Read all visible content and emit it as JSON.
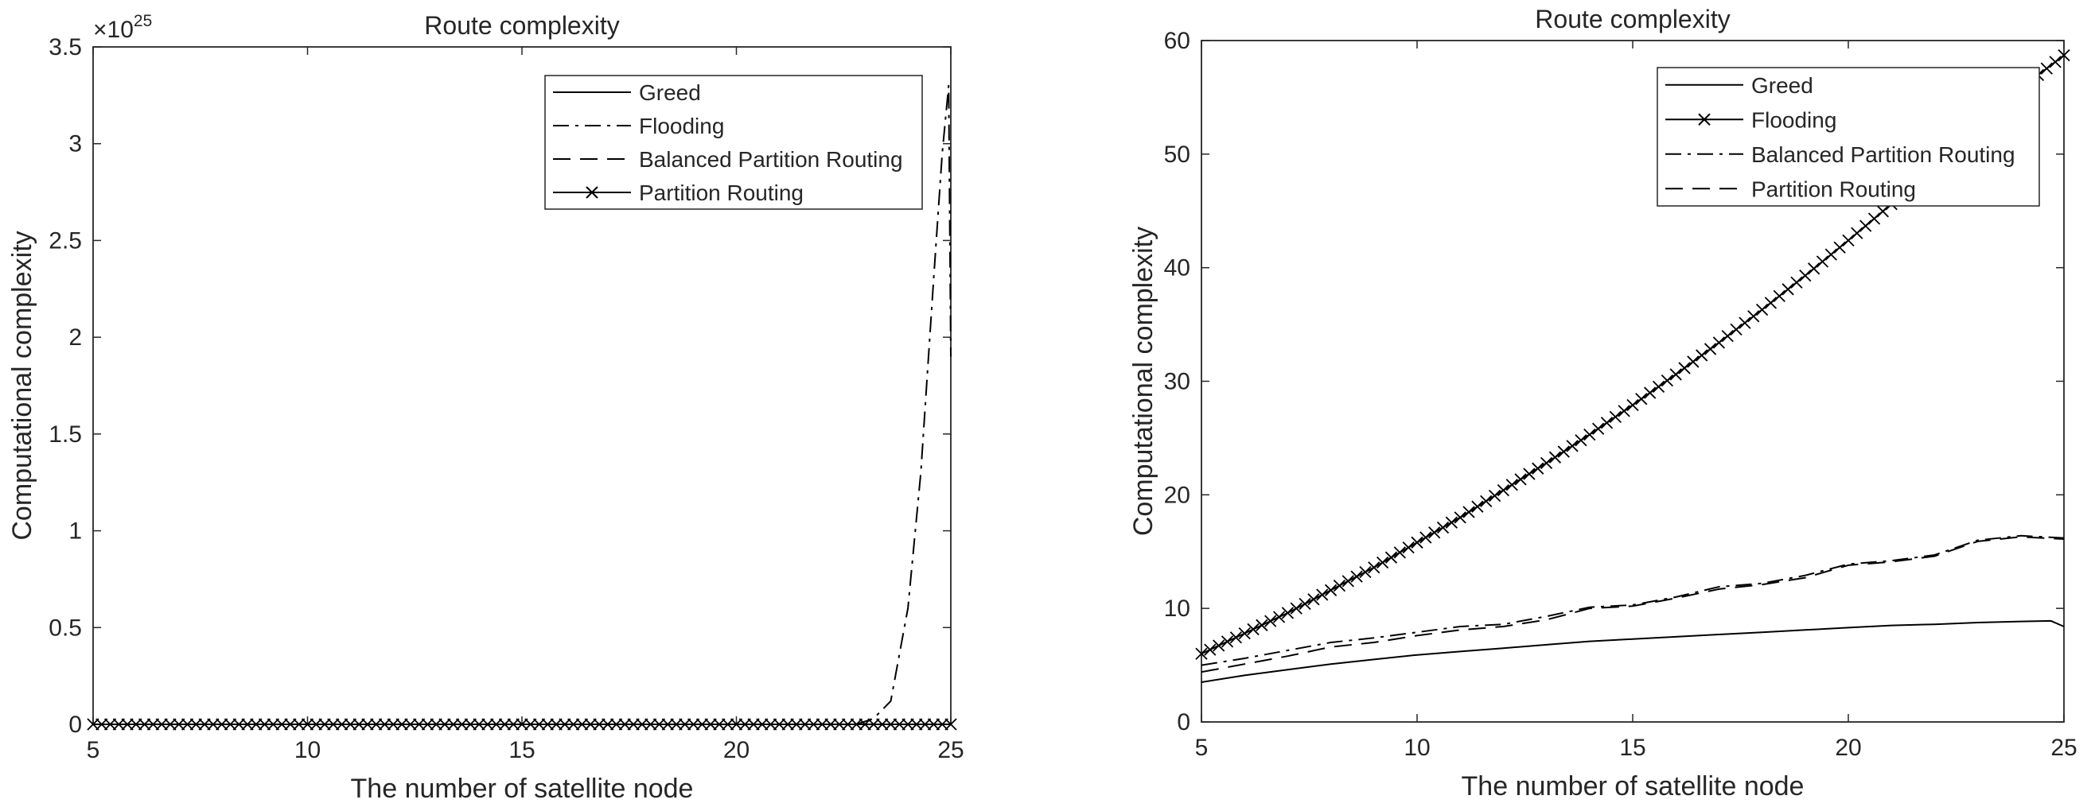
{
  "chart_data": [
    {
      "type": "line",
      "title": "Route complexity",
      "xlabel": "The number of satellite node",
      "ylabel": "Computational complexity",
      "xlim": [
        5,
        25
      ],
      "ylim": [
        0,
        3.5
      ],
      "y_exponent_label": "×10",
      "y_exponent_power": "25",
      "xticks": [
        "5",
        "10",
        "15",
        "20",
        "25"
      ],
      "yticks": [
        "0",
        "0.5",
        "1",
        "1.5",
        "2",
        "2.5",
        "3",
        "3.5"
      ],
      "legend_position": "top-right",
      "grid": false,
      "series": [
        {
          "name": "Greed",
          "style": "solid",
          "color": "#000000",
          "x": [
            5,
            10,
            15,
            20,
            25
          ],
          "y": [
            0,
            0,
            0,
            0,
            0
          ]
        },
        {
          "name": "Flooding",
          "style": "dashdot",
          "color": "#000000",
          "x": [
            5,
            15,
            20,
            22.8,
            23.2,
            23.6,
            24.0,
            24.3,
            24.6,
            24.8,
            24.95,
            25.0
          ],
          "y": [
            0,
            0,
            0,
            0,
            0.03,
            0.12,
            0.6,
            1.3,
            2.3,
            2.95,
            3.3,
            1.9
          ]
        },
        {
          "name": "Balanced Partition Routing",
          "style": "dashed",
          "color": "#000000",
          "x": [
            5,
            10,
            15,
            20,
            25
          ],
          "y": [
            0,
            0,
            0,
            0,
            0
          ]
        },
        {
          "name": "Partition Routing",
          "style": "solid",
          "marker": "x",
          "color": "#000000",
          "x": [
            5,
            25
          ],
          "y": [
            0,
            0
          ],
          "marker_count": 101
        }
      ]
    },
    {
      "type": "line",
      "title": "Route complexity",
      "xlabel": "The number of satellite node",
      "ylabel": "Computational complexity",
      "xlim": [
        5,
        25
      ],
      "ylim": [
        0,
        60
      ],
      "xticks": [
        "5",
        "10",
        "15",
        "20",
        "25"
      ],
      "yticks": [
        "0",
        "10",
        "20",
        "30",
        "40",
        "50",
        "60"
      ],
      "legend_position": "top-right",
      "grid": false,
      "series": [
        {
          "name": "Greed",
          "style": "solid",
          "color": "#000000",
          "x": [
            5,
            6,
            7,
            8,
            9,
            10,
            11,
            12,
            13,
            14,
            15,
            16,
            17,
            18,
            19,
            20,
            21,
            22,
            23,
            24,
            24.7,
            25
          ],
          "y": [
            3.5,
            4.1,
            4.6,
            5.1,
            5.5,
            5.9,
            6.2,
            6.5,
            6.8,
            7.1,
            7.3,
            7.5,
            7.7,
            7.9,
            8.1,
            8.3,
            8.5,
            8.6,
            8.75,
            8.85,
            8.9,
            8.4
          ]
        },
        {
          "name": "Flooding",
          "style": "solid",
          "marker": "x",
          "color": "#000000",
          "x": [
            5,
            6,
            7,
            8,
            9,
            10,
            11,
            12,
            13,
            14,
            15,
            16,
            17,
            18,
            19,
            20,
            21,
            22,
            23,
            24,
            25
          ],
          "y": [
            6.0,
            7.8,
            9.6,
            11.6,
            13.6,
            15.8,
            18.0,
            20.4,
            22.8,
            25.3,
            27.9,
            30.6,
            33.4,
            36.3,
            39.3,
            42.4,
            45.6,
            48.9,
            52.3,
            55.8,
            58.7
          ],
          "marker_count": 101
        },
        {
          "name": "Balanced Partition Routing",
          "style": "dashdot",
          "color": "#000000",
          "x": [
            5,
            6,
            7,
            8,
            9,
            10,
            11,
            12,
            13,
            14,
            15,
            16,
            17,
            18,
            19,
            20,
            21,
            22,
            23,
            24,
            25
          ],
          "y": [
            5.0,
            5.6,
            6.3,
            7.0,
            7.4,
            7.9,
            8.4,
            8.6,
            9.3,
            10.1,
            10.3,
            11.0,
            11.9,
            12.2,
            12.9,
            13.9,
            14.2,
            14.7,
            16.0,
            16.4,
            16.2
          ]
        },
        {
          "name": "Partition Routing",
          "style": "dashed",
          "color": "#000000",
          "x": [
            5,
            6,
            7,
            8,
            9,
            10,
            11,
            12,
            13,
            14,
            15,
            16,
            17,
            18,
            19,
            20,
            21,
            22,
            23,
            24,
            25
          ],
          "y": [
            4.4,
            5.1,
            5.8,
            6.6,
            7.0,
            7.6,
            8.1,
            8.4,
            9.0,
            10.0,
            10.2,
            10.9,
            11.7,
            12.1,
            12.7,
            13.8,
            14.1,
            14.6,
            15.9,
            16.3,
            16.1
          ]
        }
      ]
    }
  ]
}
